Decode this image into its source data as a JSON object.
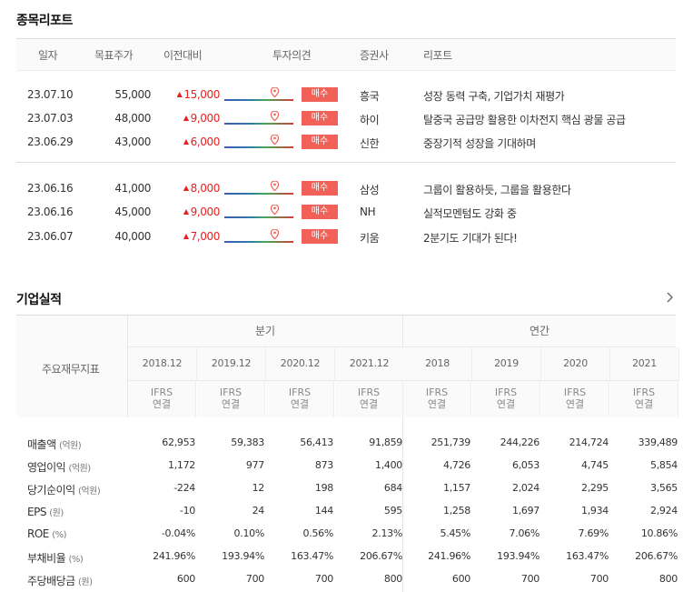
{
  "report_section": {
    "title": "종목리포트",
    "columns": [
      "일자",
      "목표주가",
      "이전대비",
      "투자의견",
      "증권사",
      "리포트"
    ],
    "rows": [
      {
        "date": "23.07.10",
        "target": "55,000",
        "change": "15,000",
        "opinion": "매수",
        "firm": "흥국",
        "title": "성장 동력 구축, 기업가치 재평가"
      },
      {
        "date": "23.07.03",
        "target": "48,000",
        "change": "9,000",
        "opinion": "매수",
        "firm": "하이",
        "title": "탈중국 공급망 활용한 이차전지 핵심 광물 공급"
      },
      {
        "date": "23.06.29",
        "target": "43,000",
        "change": "6,000",
        "opinion": "매수",
        "firm": "신한",
        "title": "중장기적 성장을 기대하며"
      },
      {
        "date": "23.06.16",
        "target": "41,000",
        "change": "8,000",
        "opinion": "매수",
        "firm": "삼성",
        "title": "그룹이 활용하듯, 그룹을 활용한다"
      },
      {
        "date": "23.06.16",
        "target": "45,000",
        "change": "9,000",
        "opinion": "매수",
        "firm": "NH",
        "title": "실적모멘텀도 강화 중"
      },
      {
        "date": "23.06.07",
        "target": "40,000",
        "change": "7,000",
        "opinion": "매수",
        "firm": "키움",
        "title": "2분기도 기대가 된다!"
      }
    ]
  },
  "earnings_section": {
    "title": "기업실적",
    "row_header": "주요재무지표",
    "groups": [
      "분기",
      "연간"
    ],
    "periods": [
      "2018.12",
      "2019.12",
      "2020.12",
      "2021.12",
      "2018",
      "2019",
      "2020",
      "2021"
    ],
    "basis_line1": "IFRS",
    "basis_line2": "연결",
    "rows": [
      {
        "label": "매출액",
        "unit": "(억원)",
        "values": [
          "62,953",
          "59,383",
          "56,413",
          "91,859",
          "251,739",
          "244,226",
          "214,724",
          "339,489"
        ]
      },
      {
        "label": "영업이익",
        "unit": "(억원)",
        "values": [
          "1,172",
          "977",
          "873",
          "1,400",
          "4,726",
          "6,053",
          "4,745",
          "5,854"
        ]
      },
      {
        "label": "당기순이익",
        "unit": "(억원)",
        "values": [
          "-224",
          "12",
          "198",
          "684",
          "1,157",
          "2,024",
          "2,295",
          "3,565"
        ]
      },
      {
        "label": "EPS",
        "unit": "(원)",
        "values": [
          "-10",
          "24",
          "144",
          "595",
          "1,258",
          "1,697",
          "1,934",
          "2,924"
        ]
      },
      {
        "label": "ROE",
        "unit": "(%)",
        "values": [
          "-0.04%",
          "0.10%",
          "0.56%",
          "2.13%",
          "5.45%",
          "7.06%",
          "7.69%",
          "10.86%"
        ]
      },
      {
        "label": "부채비율",
        "unit": "(%)",
        "values": [
          "241.96%",
          "193.94%",
          "163.47%",
          "206.67%",
          "241.96%",
          "193.94%",
          "163.47%",
          "206.67%"
        ]
      },
      {
        "label": "주당배당금",
        "unit": "(원)",
        "values": [
          "600",
          "700",
          "700",
          "800",
          "600",
          "700",
          "700",
          "800"
        ]
      }
    ]
  },
  "colors": {
    "accent_red": "#e62020",
    "badge": "#f26157",
    "pin": "#f26157"
  }
}
